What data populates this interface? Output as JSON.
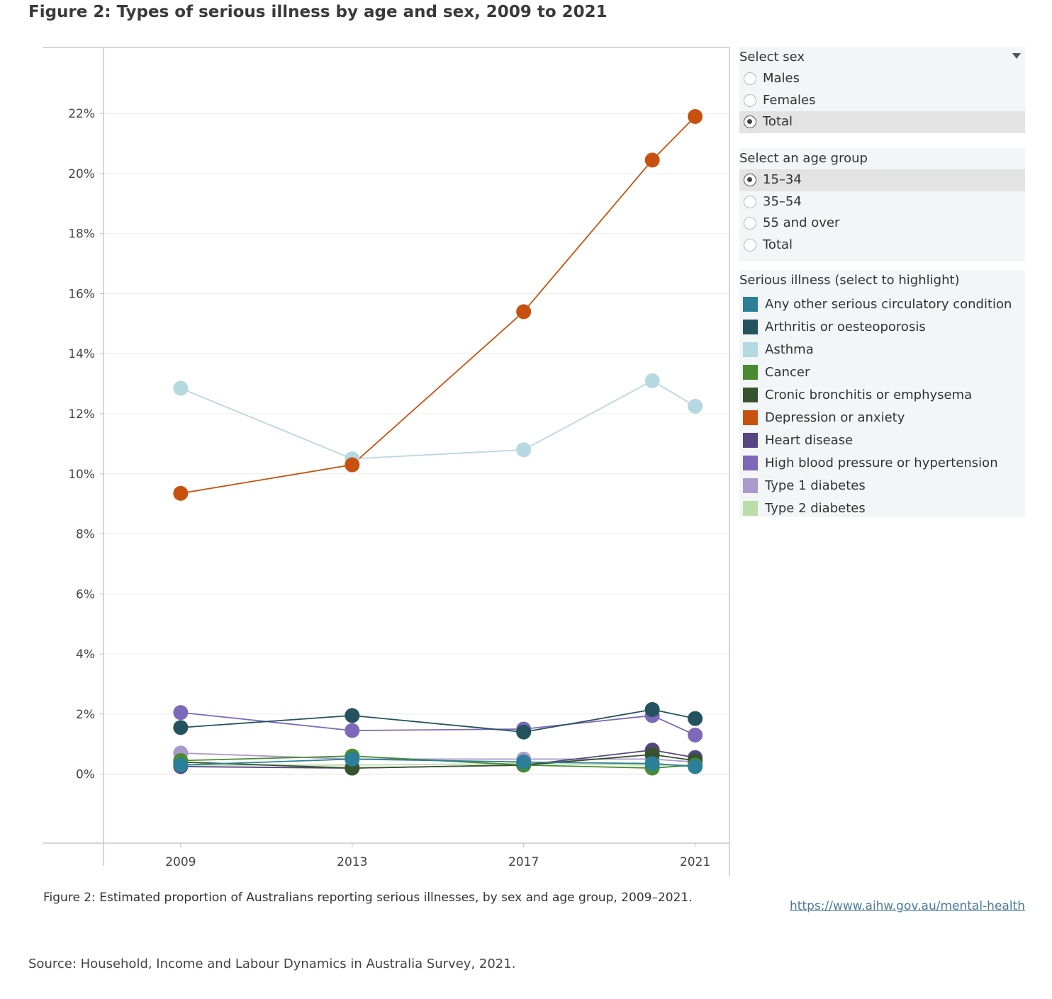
{
  "page": {
    "title": "Figure 2: Types of serious illness by age and sex, 2009 to 2021",
    "caption": "Figure 2: Estimated proportion of Australians reporting serious illnesses, by sex and age group, 2009–2021.",
    "link": "https://www.aihw.gov.au/mental-health",
    "source": "Source: Household, Income and Labour Dynamics in Australia Survey, 2021."
  },
  "filters": {
    "sex": {
      "title": "Select sex",
      "options": [
        {
          "label": "Males",
          "selected": false
        },
        {
          "label": "Females",
          "selected": false
        },
        {
          "label": "Total",
          "selected": true
        }
      ]
    },
    "age": {
      "title": "Select an age group",
      "options": [
        {
          "label": "15–34",
          "selected": true
        },
        {
          "label": "35–54",
          "selected": false
        },
        {
          "label": "55 and over",
          "selected": false
        },
        {
          "label": "Total",
          "selected": false
        }
      ]
    }
  },
  "legend": {
    "title": "Serious illness (select to highlight)"
  },
  "chart_data": {
    "type": "line",
    "x_ticks": [
      2009,
      2013,
      2017,
      2021
    ],
    "xlim": [
      2007.2,
      2021.8
    ],
    "ylim": [
      -2.3,
      24.2
    ],
    "y_ticks": [
      0,
      2,
      4,
      6,
      8,
      10,
      12,
      14,
      16,
      18,
      20,
      22
    ],
    "y_tick_labels": [
      "0%",
      "2%",
      "4%",
      "6%",
      "8%",
      "10%",
      "12%",
      "14%",
      "16%",
      "18%",
      "20%",
      "22%"
    ],
    "grid": true,
    "series": [
      {
        "name": "Any other serious circulatory condition",
        "color": "#2b7f98",
        "x": [
          2009,
          2013,
          2017,
          2020,
          2021
        ],
        "values": [
          0.3,
          0.5,
          0.4,
          0.35,
          0.25
        ]
      },
      {
        "name": "Arthritis or oesteoporosis",
        "color": "#24535f",
        "x": [
          2009,
          2013,
          2017,
          2020,
          2021
        ],
        "values": [
          1.55,
          1.95,
          1.4,
          2.15,
          1.85
        ]
      },
      {
        "name": "Asthma",
        "color": "#b6d8e1",
        "x": [
          2009,
          2013,
          2017,
          2020,
          2021
        ],
        "values": [
          12.85,
          10.5,
          10.8,
          13.1,
          12.25
        ]
      },
      {
        "name": "Cancer",
        "color": "#4a8b2f",
        "x": [
          2009,
          2013,
          2017,
          2020,
          2021
        ],
        "values": [
          0.45,
          0.6,
          0.3,
          0.2,
          0.3
        ]
      },
      {
        "name": "Cronic bronchitis or emphysema",
        "color": "#36532e",
        "x": [
          2009,
          2013,
          2017,
          2020,
          2021
        ],
        "values": [
          0.4,
          0.2,
          0.3,
          0.65,
          0.45
        ]
      },
      {
        "name": "Depression or anxiety",
        "color": "#c9510f",
        "x": [
          2009,
          2013,
          2017,
          2020,
          2021
        ],
        "values": [
          9.35,
          10.3,
          15.4,
          20.45,
          21.9
        ]
      },
      {
        "name": "Heart disease",
        "color": "#564583",
        "x": [
          2009,
          2013,
          2017,
          2020,
          2021
        ],
        "values": [
          0.25,
          0.2,
          0.3,
          0.8,
          0.55
        ]
      },
      {
        "name": "High blood pressure or hypertension",
        "color": "#7d68b9",
        "x": [
          2009,
          2013,
          2017,
          2020,
          2021
        ],
        "values": [
          2.05,
          1.45,
          1.5,
          1.95,
          1.3
        ]
      },
      {
        "name": "Type 1 diabetes",
        "color": "#ab99cc",
        "x": [
          2009,
          2013,
          2017,
          2020,
          2021
        ],
        "values": [
          0.7,
          0.5,
          0.5,
          0.5,
          0.4
        ]
      },
      {
        "name": "Type 2 diabetes",
        "color": "#bcdca9",
        "x": [
          2009,
          2013,
          2017,
          2020,
          2021
        ],
        "values": [
          0.3,
          0.3,
          0.35,
          0.3,
          0.3
        ]
      }
    ]
  }
}
